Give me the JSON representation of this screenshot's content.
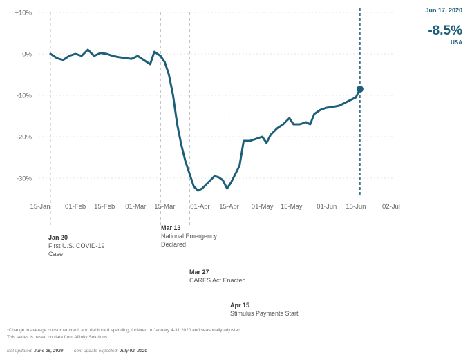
{
  "chart_data": {
    "type": "line",
    "title": "",
    "xlabel": "",
    "ylabel": "",
    "x_range": [
      "2020-01-13",
      "2020-07-04"
    ],
    "ylim": [
      -35,
      10
    ],
    "y_ticks": [
      10,
      0,
      -10,
      -20,
      -30
    ],
    "y_tick_labels": [
      "+10%",
      "0%",
      "-10%",
      "-20%",
      "-30%"
    ],
    "x_ticks": [
      "2020-01-15",
      "2020-02-01",
      "2020-02-15",
      "2020-03-01",
      "2020-03-15",
      "2020-04-01",
      "2020-04-15",
      "2020-05-01",
      "2020-05-15",
      "2020-06-01",
      "2020-06-15",
      "2020-07-02"
    ],
    "x_tick_labels": [
      "15-Jan",
      "01-Feb",
      "15-Feb",
      "01-Mar",
      "15-Mar",
      "01-Apr",
      "15-Apr",
      "01-May",
      "15-May",
      "01-Jun",
      "15-Jun",
      "02-Jul"
    ],
    "grid": true,
    "series": [
      {
        "name": "USA",
        "color": "#1d5f79",
        "points": [
          [
            "2020-01-20",
            0.0
          ],
          [
            "2020-01-23",
            -1.0
          ],
          [
            "2020-01-26",
            -1.5
          ],
          [
            "2020-01-29",
            -0.5
          ],
          [
            "2020-02-01",
            0.0
          ],
          [
            "2020-02-04",
            -0.5
          ],
          [
            "2020-02-07",
            1.0
          ],
          [
            "2020-02-10",
            -0.5
          ],
          [
            "2020-02-13",
            0.2
          ],
          [
            "2020-02-16",
            0.0
          ],
          [
            "2020-02-19",
            -0.5
          ],
          [
            "2020-02-22",
            -0.8
          ],
          [
            "2020-02-25",
            -1.0
          ],
          [
            "2020-02-28",
            -1.2
          ],
          [
            "2020-03-02",
            -0.5
          ],
          [
            "2020-03-05",
            -1.5
          ],
          [
            "2020-03-08",
            -2.5
          ],
          [
            "2020-03-10",
            0.5
          ],
          [
            "2020-03-13",
            -0.5
          ],
          [
            "2020-03-15",
            -2.0
          ],
          [
            "2020-03-17",
            -5.0
          ],
          [
            "2020-03-19",
            -10.0
          ],
          [
            "2020-03-21",
            -17.0
          ],
          [
            "2020-03-23",
            -22.0
          ],
          [
            "2020-03-25",
            -26.0
          ],
          [
            "2020-03-27",
            -29.0
          ],
          [
            "2020-03-29",
            -32.0
          ],
          [
            "2020-03-31",
            -33.0
          ],
          [
            "2020-04-02",
            -32.5
          ],
          [
            "2020-04-04",
            -31.5
          ],
          [
            "2020-04-06",
            -30.5
          ],
          [
            "2020-04-08",
            -29.5
          ],
          [
            "2020-04-10",
            -29.8
          ],
          [
            "2020-04-12",
            -30.5
          ],
          [
            "2020-04-14",
            -32.5
          ],
          [
            "2020-04-16",
            -31.0
          ],
          [
            "2020-04-18",
            -29.0
          ],
          [
            "2020-04-20",
            -27.0
          ],
          [
            "2020-04-22",
            -21.0
          ],
          [
            "2020-04-25",
            -21.0
          ],
          [
            "2020-04-28",
            -20.5
          ],
          [
            "2020-05-01",
            -20.0
          ],
          [
            "2020-05-03",
            -21.5
          ],
          [
            "2020-05-05",
            -19.5
          ],
          [
            "2020-05-08",
            -18.0
          ],
          [
            "2020-05-11",
            -17.0
          ],
          [
            "2020-05-14",
            -15.5
          ],
          [
            "2020-05-16",
            -17.0
          ],
          [
            "2020-05-19",
            -17.0
          ],
          [
            "2020-05-22",
            -16.5
          ],
          [
            "2020-05-24",
            -17.0
          ],
          [
            "2020-05-26",
            -14.5
          ],
          [
            "2020-05-29",
            -13.5
          ],
          [
            "2020-06-01",
            -13.0
          ],
          [
            "2020-06-04",
            -12.8
          ],
          [
            "2020-06-07",
            -12.5
          ],
          [
            "2020-06-09",
            -12.0
          ],
          [
            "2020-06-11",
            -11.5
          ],
          [
            "2020-06-13",
            -11.0
          ],
          [
            "2020-06-15",
            -10.5
          ],
          [
            "2020-06-17",
            -8.5
          ]
        ]
      }
    ],
    "current_marker": {
      "date": "2020-06-17",
      "value": -8.5
    },
    "events": [
      {
        "date": "2020-01-20",
        "date_label": "Jan 20",
        "label": "First U.S. COVID-19 Case"
      },
      {
        "date": "2020-03-13",
        "date_label": "Mar 13",
        "label": "National Emergency Declared"
      },
      {
        "date": "2020-03-27",
        "date_label": "Mar 27",
        "label": "CARES Act Enacted"
      },
      {
        "date": "2020-04-15",
        "date_label": "Apr 15",
        "label": "Stimulus Payments Start"
      }
    ]
  },
  "readout": {
    "date": "Jun 17, 2020",
    "value": "-8.5%",
    "region": "USA"
  },
  "footnote": {
    "line1": "*Change in average consumer credit and debit card spending, indexed to January 4-31 2020 and seasonally adjusted.",
    "line2": "This series is based on data from Affinity Solutions."
  },
  "update_info": {
    "last_label": "last updated:",
    "last_date": "June 25, 2020",
    "next_label": "next update expected:",
    "next_date": "July 02, 2020"
  },
  "colors": {
    "series": "#1d5f79",
    "event_line": "#bdbdbd",
    "grid": "#e6e6e6"
  }
}
